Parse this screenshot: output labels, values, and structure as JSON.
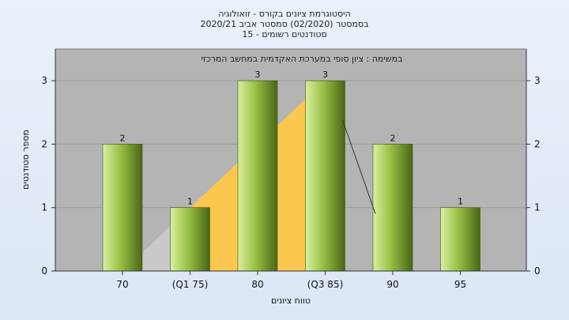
{
  "colors": {
    "background": "#e2ecf8",
    "plot_area": "#b4b4b4",
    "bar_light": "#d8ef9a",
    "bar_dark": "#4e6a18",
    "distribution": "#ffc84a",
    "grid": "#9a9a9a"
  },
  "chart_data": {
    "type": "bar",
    "title_lines": [
      "היסטוגרמת ציונים בקורס - זואולוגיה",
      "בסמסטר  (02/2020)  סמסטר אביב 2020/21",
      "סטודנטים רשומים - 15"
    ],
    "banner": "במשימה : ציון סופי במערכת האקדמית במחשב המרכזי",
    "xlabel": "טווח ציונים",
    "ylabel": "מספר סטודנטים",
    "categories": [
      "70",
      "(Q1 75)",
      "80",
      "(Q3 85)",
      "90",
      "95"
    ],
    "values": [
      2,
      1,
      3,
      3,
      2,
      1
    ],
    "data_labels": [
      "2",
      "1",
      "3",
      "3",
      "2",
      "1"
    ],
    "ylim": [
      0,
      3.5
    ],
    "yticks": [
      "0",
      "1",
      "2",
      "3"
    ],
    "grid": true,
    "quartile_band": {
      "from_category": "(Q1 75)",
      "to_category": "(Q3 85)"
    }
  }
}
